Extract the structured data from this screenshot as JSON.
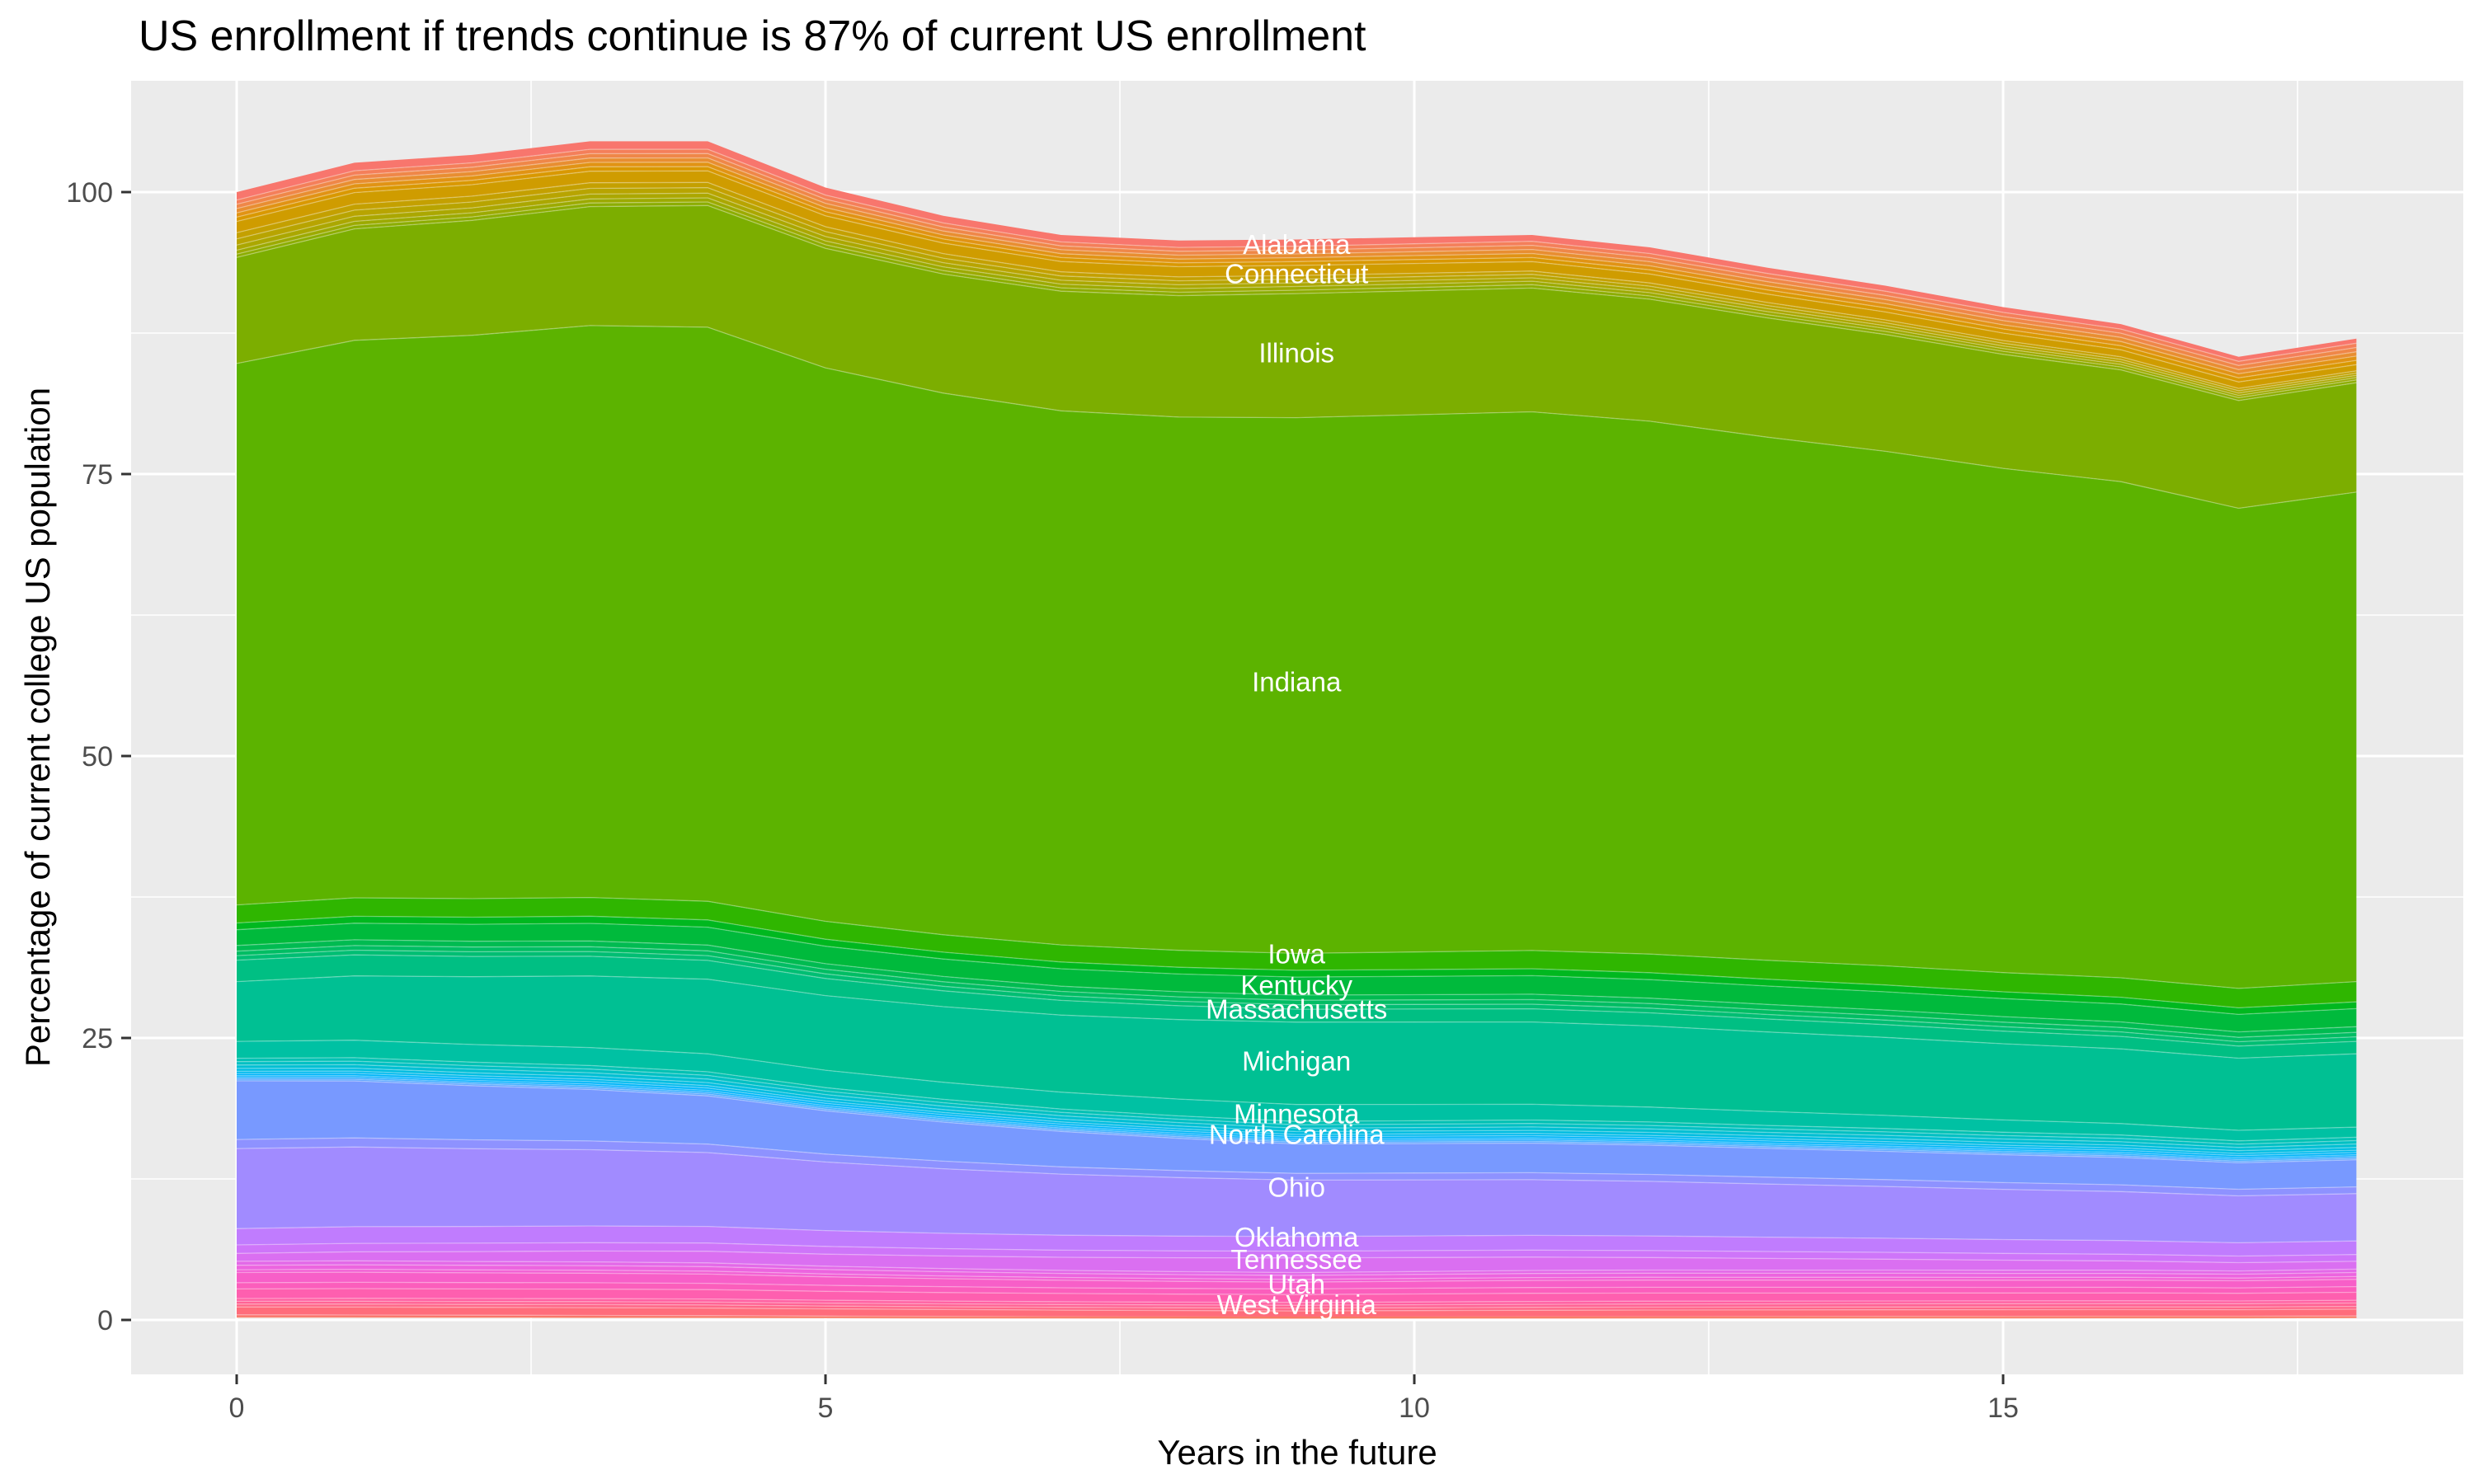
{
  "chart_data": {
    "type": "area",
    "title": "US enrollment if trends continue is 87% of current US enrollment",
    "xlabel": "Years in the future",
    "ylabel": "Percentage of current college US population",
    "legend": "none",
    "grid": "on",
    "panel_bg": "#EBEBEB",
    "grid_color": "#FFFFFF",
    "tick_color": "#333333",
    "tick_label_color": "#4D4D4D",
    "state_label_color": "#FFFFFF",
    "x_ticks": [
      0,
      5,
      10,
      15
    ],
    "x_minor_ticks": [
      2.5,
      7.5,
      12.5,
      17.5
    ],
    "y_ticks": [
      0,
      25,
      50,
      75,
      100
    ],
    "y_minor_ticks": [
      12.5,
      37.5,
      62.5,
      87.5
    ],
    "xlim": [
      -0.9,
      18.9
    ],
    "ylim": [
      -4.8,
      109.6
    ],
    "x": [
      0,
      1,
      2,
      3,
      4,
      5,
      6,
      7,
      8,
      9,
      10,
      11,
      12,
      13,
      14,
      15,
      16,
      17,
      18
    ],
    "totals": [
      100,
      102.6,
      103.3,
      104.5,
      104.5,
      100.4,
      97.9,
      96.2,
      95.7,
      95.8,
      96.0,
      96.2,
      95.1,
      93.3,
      91.7,
      89.8,
      88.3,
      85.4,
      87.0
    ],
    "anchor_years": [
      0,
      9,
      18
    ],
    "anchor_totals": [
      100,
      95.8,
      87.0
    ],
    "stack_bottom_pct": 0.3,
    "bands": [
      {
        "name": "Alabama",
        "color": "#F8766D",
        "top": [
          100,
          95.8,
          87.0
        ]
      },
      {
        "name": "",
        "color": "#F47F5A",
        "top": [
          99.3,
          95.2,
          86.6
        ]
      },
      {
        "name": "",
        "color": "#EF8748",
        "top": [
          98.92,
          94.86,
          86.22
        ]
      },
      {
        "name": "",
        "color": "#E88E31",
        "top": [
          98.54,
          94.52,
          85.84
        ]
      },
      {
        "name": "",
        "color": "#E19314",
        "top": [
          98.16,
          94.18,
          85.46
        ]
      },
      {
        "name": "",
        "color": "#D99800",
        "top": [
          97.78,
          93.84,
          85.08
        ]
      },
      {
        "name": "Connecticut",
        "color": "#CF9C00",
        "top": [
          97.4,
          93.5,
          84.7
        ]
      },
      {
        "name": "",
        "color": "#C4A000",
        "top": [
          96.4,
          92.6,
          84.15
        ]
      },
      {
        "name": "",
        "color": "#B8A400",
        "top": [
          95.85,
          92.28,
          83.95
        ]
      },
      {
        "name": "",
        "color": "#ABA700",
        "top": [
          95.3,
          91.95,
          83.75
        ]
      },
      {
        "name": "",
        "color": "#9CAA00",
        "top": [
          94.85,
          91.63,
          83.55
        ]
      },
      {
        "name": "",
        "color": "#8CAD00",
        "top": [
          94.5,
          91.3,
          83.35
        ]
      },
      {
        "name": "Illinois",
        "color": "#7CAE00",
        "top": [
          94.2,
          91.0,
          83.1
        ]
      },
      {
        "name": "Indiana",
        "color": "#5CB300",
        "top": [
          84.8,
          80.0,
          73.4
        ]
      },
      {
        "name": "Iowa",
        "color": "#2FB600",
        "top": [
          36.8,
          32.5,
          30.0
        ]
      },
      {
        "name": "",
        "color": "#00B81F",
        "top": [
          35.2,
          31.0,
          28.2
        ]
      },
      {
        "name": "Kentucky",
        "color": "#00BA3C",
        "top": [
          34.6,
          30.4,
          27.6
        ]
      },
      {
        "name": "",
        "color": "#00BB51",
        "top": [
          33.2,
          28.8,
          26.0
        ]
      },
      {
        "name": "",
        "color": "#00BD63",
        "top": [
          32.7,
          28.35,
          25.5
        ]
      },
      {
        "name": "",
        "color": "#00BE73",
        "top": [
          32.3,
          27.95,
          25.1
        ]
      },
      {
        "name": "Massachusetts",
        "color": "#00BF83",
        "top": [
          31.9,
          27.55,
          24.7
        ]
      },
      {
        "name": "Michigan",
        "color": "#00C093",
        "top": [
          30.0,
          26.4,
          23.6
        ]
      },
      {
        "name": "Minnesota",
        "color": "#00C1A3",
        "top": [
          24.7,
          19.1,
          17.1
        ]
      },
      {
        "name": "",
        "color": "#00C1B3",
        "top": [
          23.2,
          17.6,
          16.2
        ]
      },
      {
        "name": "",
        "color": "#00C0C3",
        "top": [
          22.9,
          17.3,
          15.9
        ]
      },
      {
        "name": "",
        "color": "#00BFD3",
        "top": [
          22.6,
          17.0,
          15.6
        ]
      },
      {
        "name": "",
        "color": "#00BDE1",
        "top": [
          22.3,
          16.7,
          15.3
        ]
      },
      {
        "name": "",
        "color": "#00BAEE",
        "top": [
          22.05,
          16.45,
          15.05
        ]
      },
      {
        "name": "",
        "color": "#00B5F9",
        "top": [
          21.85,
          16.25,
          14.85
        ]
      },
      {
        "name": "",
        "color": "#00AFFF",
        "top": [
          21.65,
          16.05,
          14.65
        ]
      },
      {
        "name": "",
        "color": "#2FA8FF",
        "top": [
          21.5,
          15.9,
          14.5
        ]
      },
      {
        "name": "",
        "color": "#5BA2FF",
        "top": [
          21.35,
          15.75,
          14.35
        ]
      },
      {
        "name": "North Carolina",
        "color": "#7899FF",
        "top": [
          21.2,
          15.6,
          14.2
        ]
      },
      {
        "name": "",
        "color": "#8E92FF",
        "top": [
          16.0,
          13.0,
          11.8
        ]
      },
      {
        "name": "Ohio",
        "color": "#A18BFF",
        "top": [
          15.2,
          12.4,
          11.2
        ]
      },
      {
        "name": "Oklahoma",
        "color": "#C07CFE",
        "top": [
          8.1,
          7.4,
          7.0
        ]
      },
      {
        "name": "",
        "color": "#CE75F9",
        "top": [
          6.65,
          6.1,
          5.8
        ]
      },
      {
        "name": "",
        "color": "#DA6FF1",
        "top": [
          5.9,
          5.5,
          5.2
        ]
      },
      {
        "name": "",
        "color": "#E369E8",
        "top": [
          5.2,
          4.2,
          4.5
        ]
      },
      {
        "name": "",
        "color": "#EC64DF",
        "top": [
          4.85,
          3.95,
          4.2
        ]
      },
      {
        "name": "",
        "color": "#F261D4",
        "top": [
          4.45,
          3.6,
          3.85
        ]
      },
      {
        "name": "Tennessee",
        "color": "#F75FC8",
        "top": [
          4.2,
          3.35,
          3.6
        ]
      },
      {
        "name": "",
        "color": "#FB5EBC",
        "top": [
          3.3,
          2.75,
          2.95
        ]
      },
      {
        "name": "Utah",
        "color": "#FE5FAF",
        "top": [
          2.75,
          2.25,
          2.45
        ]
      },
      {
        "name": "",
        "color": "#FF61A2",
        "top": [
          1.9,
          1.55,
          1.75
        ]
      },
      {
        "name": "",
        "color": "#FF6495",
        "top": [
          1.65,
          1.3,
          1.5
        ]
      },
      {
        "name": "",
        "color": "#FF6888",
        "top": [
          1.4,
          1.05,
          1.2
        ]
      },
      {
        "name": "West Virginia",
        "color": "#FF6C7B",
        "top": [
          1.15,
          0.8,
          0.95
        ]
      },
      {
        "name": "",
        "color": "#FB726E",
        "top": [
          0.45,
          0.25,
          0.35
        ]
      },
      {
        "name": "",
        "color": "#F77961",
        "top": [
          0.2,
          0.1,
          0.15
        ]
      }
    ],
    "state_labels": [
      {
        "text": "Alabama",
        "y_pct": 95.4
      },
      {
        "text": "Connecticut",
        "y_pct": 92.8
      },
      {
        "text": "Illinois",
        "y_pct": 85.8
      },
      {
        "text": "Indiana",
        "y_pct": 56.6
      },
      {
        "text": "Iowa",
        "y_pct": 32.5
      },
      {
        "text": "Kentucky",
        "y_pct": 29.7
      },
      {
        "text": "Massachusetts",
        "y_pct": 27.6
      },
      {
        "text": "Michigan",
        "y_pct": 23.0
      },
      {
        "text": "Minnesota",
        "y_pct": 18.3
      },
      {
        "text": "North Carolina",
        "y_pct": 16.5
      },
      {
        "text": "Ohio",
        "y_pct": 11.8
      },
      {
        "text": "Oklahoma",
        "y_pct": 7.4
      },
      {
        "text": "Tennessee",
        "y_pct": 5.4
      },
      {
        "text": "Utah",
        "y_pct": 3.2
      },
      {
        "text": "West Virginia",
        "y_pct": 1.4
      }
    ],
    "state_label_year": 9
  }
}
